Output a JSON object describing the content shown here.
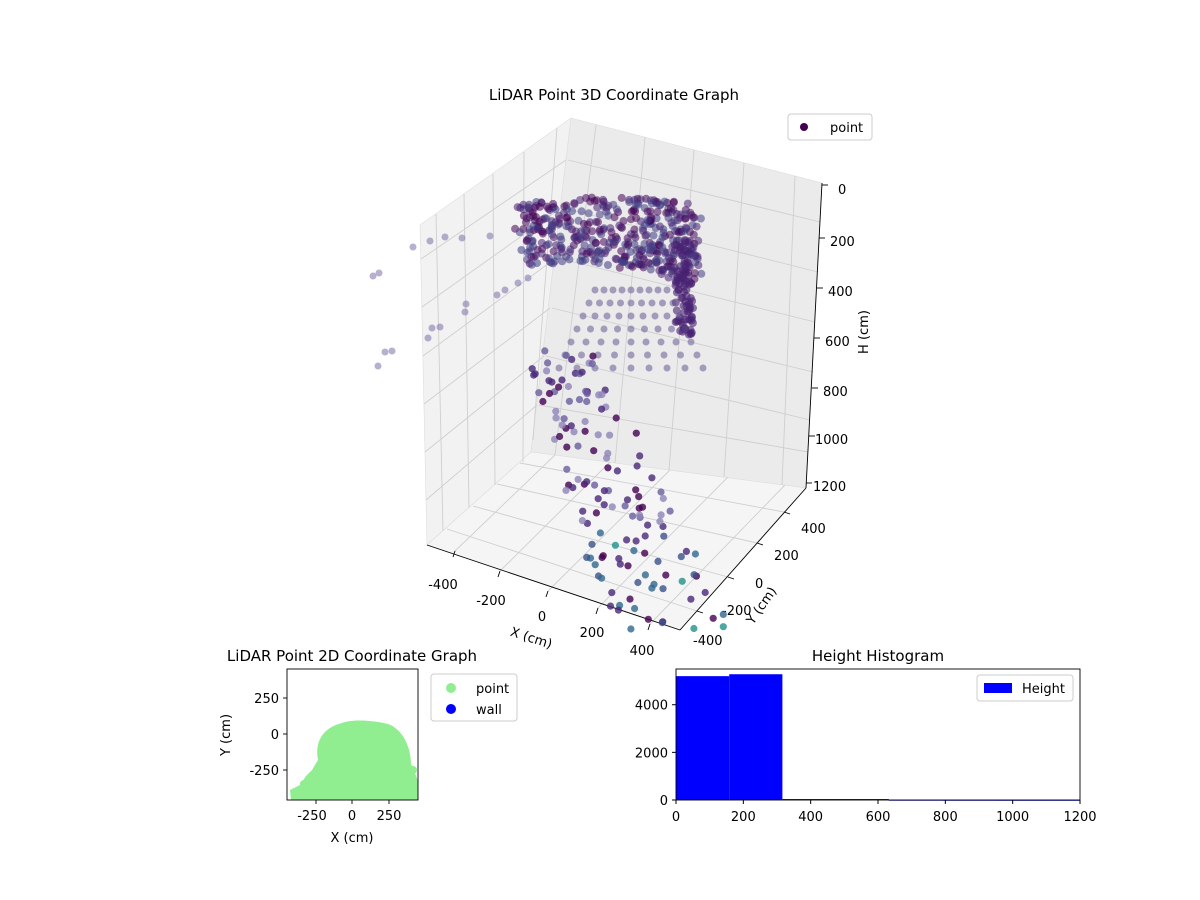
{
  "chart_data": [
    {
      "type": "scatter",
      "subtype": "3d",
      "title": "LiDAR Point 3D Coordinate Graph",
      "xlabel": "X (cm)",
      "ylabel": "Y (cm)",
      "zlabel": "H (cm)",
      "xlim": [
        -450,
        450
      ],
      "ylim": [
        -450,
        450
      ],
      "zlim": [
        0,
        1200
      ],
      "z_inverted": true,
      "x_ticks": [
        -400,
        -200,
        0,
        200,
        400
      ],
      "y_ticks": [
        -400,
        -200,
        0,
        200,
        400
      ],
      "z_ticks": [
        0,
        200,
        400,
        600,
        800,
        1000,
        1200
      ],
      "colormap": "viridis",
      "legend": {
        "placement": "upper-right",
        "entries": [
          {
            "label": "point",
            "color": "#440154"
          }
        ]
      },
      "grid": true
    },
    {
      "type": "scatter",
      "title": "LiDAR Point 2D Coordinate Graph",
      "xlabel": "X (cm)",
      "ylabel": "Y (cm)",
      "xlim": [
        -450,
        450
      ],
      "ylim": [
        -450,
        450
      ],
      "x_ticks": [
        -250,
        0,
        250
      ],
      "y_ticks": [
        250,
        0,
        -250
      ],
      "series": [
        {
          "name": "point",
          "color": "#90ee90"
        },
        {
          "name": "wall",
          "color": "#0000ff",
          "values": []
        }
      ],
      "legend": {
        "placement": "outside-right"
      }
    },
    {
      "type": "bar",
      "subtype": "histogram",
      "title": "Height Histogram",
      "xlim": [
        0,
        1200
      ],
      "ylim": [
        0,
        5500
      ],
      "x_ticks": [
        0,
        200,
        400,
        600,
        800,
        1000,
        1200
      ],
      "y_ticks": [
        0,
        2000,
        4000
      ],
      "bins": [
        {
          "start": 0,
          "end": 158,
          "count": 5200
        },
        {
          "start": 158,
          "end": 316,
          "count": 5280
        },
        {
          "start": 316,
          "end": 474,
          "count": 40
        },
        {
          "start": 474,
          "end": 632,
          "count": 40
        },
        {
          "start": 632,
          "end": 790,
          "count": 4
        },
        {
          "start": 790,
          "end": 948,
          "count": 2
        },
        {
          "start": 948,
          "end": 1106,
          "count": 1
        },
        {
          "start": 1106,
          "end": 1200,
          "count": 1
        }
      ],
      "series": [
        {
          "name": "Height",
          "color": "#0000ff"
        }
      ],
      "legend": {
        "placement": "upper-right"
      }
    }
  ]
}
